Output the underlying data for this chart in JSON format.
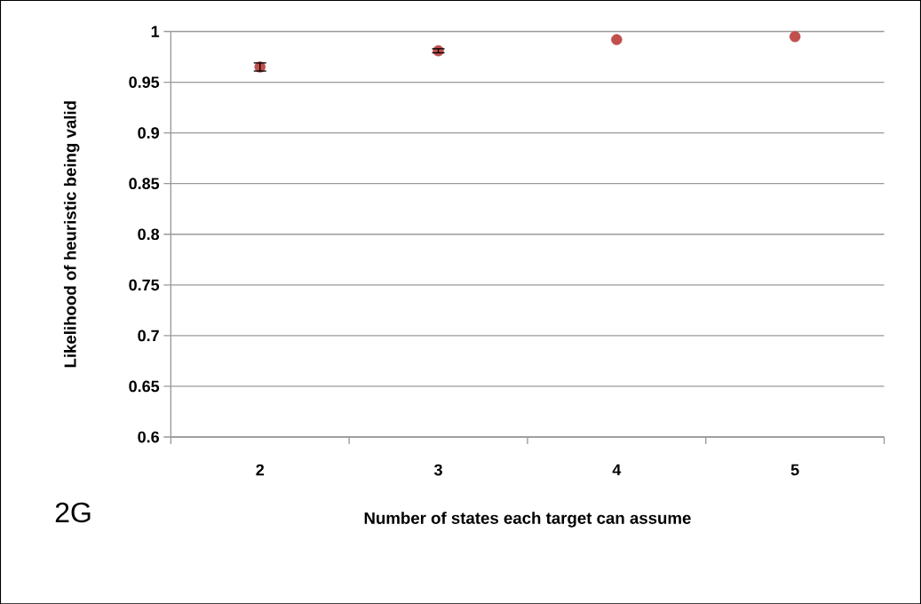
{
  "chart_data": {
    "type": "scatter",
    "xlabel": "Number of states each target can assume",
    "ylabel": "Likelihood of heuristic being valid",
    "annotations": [
      "2G"
    ],
    "categories": [
      "2",
      "3",
      "4",
      "5"
    ],
    "values": [
      0.965,
      0.981,
      0.992,
      0.995
    ],
    "errors": [
      0.004,
      0.002,
      null,
      null
    ],
    "color": "#c0504d",
    "marker": "circle",
    "ylim": [
      0.6,
      1
    ],
    "yticks": [
      0.6,
      0.65,
      0.7,
      0.75,
      0.8,
      0.85,
      0.9,
      0.95,
      1
    ],
    "grid": "y"
  }
}
